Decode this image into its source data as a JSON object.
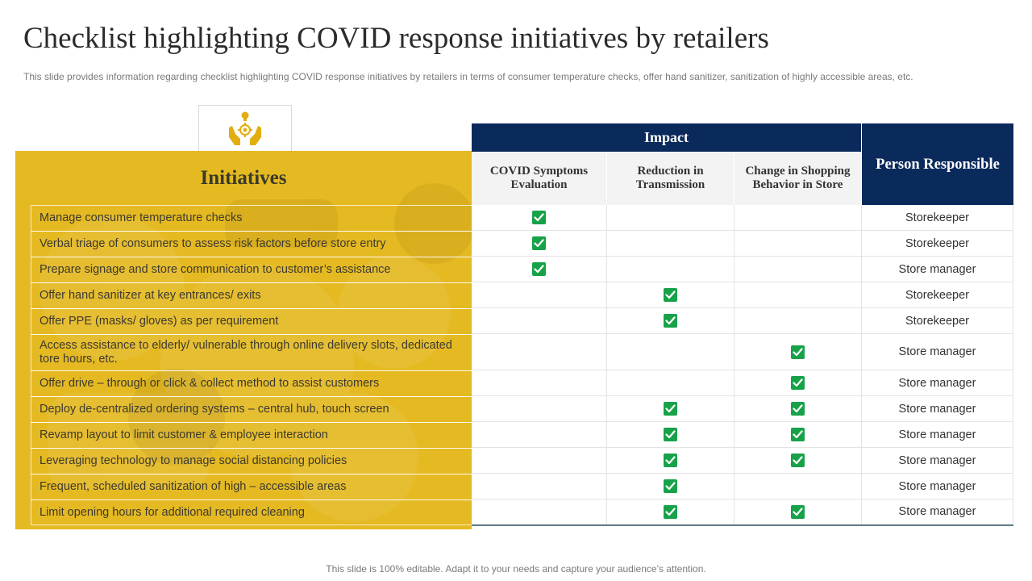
{
  "title": "Checklist highlighting COVID response initiatives by retailers",
  "subtitle": "This slide provides information regarding checklist highlighting COVID response initiatives by retailers in terms of consumer temperature checks, offer hand sanitizer, sanitization of highly accessible areas, etc.",
  "header": {
    "initiatives": "Initiatives",
    "impact": "Impact",
    "person_responsible": "Person Responsible",
    "columns": [
      "COVID Symptoms Evaluation",
      "Reduction in Transmission",
      "Change in Shopping Behavior in Store"
    ]
  },
  "rows": [
    {
      "initiative": "Manage consumer temperature checks",
      "checks": [
        true,
        false,
        false
      ],
      "person": "Storekeeper"
    },
    {
      "initiative": "Verbal triage of consumers to assess risk factors before store entry",
      "checks": [
        true,
        false,
        false
      ],
      "person": "Storekeeper"
    },
    {
      "initiative": "Prepare signage and store communication to customer’s assistance",
      "checks": [
        true,
        false,
        false
      ],
      "person": "Store manager"
    },
    {
      "initiative": "Offer hand sanitizer at key entrances/ exits",
      "checks": [
        false,
        true,
        false
      ],
      "person": "Storekeeper"
    },
    {
      "initiative": "Offer PPE (masks/ gloves) as per requirement",
      "checks": [
        false,
        true,
        false
      ],
      "person": "Storekeeper"
    },
    {
      "initiative": "Access assistance to elderly/ vulnerable through online delivery slots, dedicated tore hours, etc.",
      "checks": [
        false,
        false,
        true
      ],
      "person": "Store manager"
    },
    {
      "initiative": "Offer drive – through or click & collect method to assist customers",
      "checks": [
        false,
        false,
        true
      ],
      "person": "Store manager"
    },
    {
      "initiative": "Deploy de-centralized ordering systems – central hub, touch screen",
      "checks": [
        false,
        true,
        true
      ],
      "person": "Store manager"
    },
    {
      "initiative": "Revamp layout to limit customer & employee interaction",
      "checks": [
        false,
        true,
        true
      ],
      "person": "Store manager"
    },
    {
      "initiative": "Leveraging technology to manage social distancing policies",
      "checks": [
        false,
        true,
        true
      ],
      "person": "Store manager"
    },
    {
      "initiative": "Frequent, scheduled sanitization of high – accessible areas",
      "checks": [
        false,
        true,
        false
      ],
      "person": "Store manager"
    },
    {
      "initiative": "Limit opening hours for additional required cleaning",
      "checks": [
        false,
        true,
        true
      ],
      "person": "Store manager"
    }
  ],
  "footer": "This slide is 100% editable. Adapt it to your needs and capture your audience’s attention.",
  "colors": {
    "accent_yellow": "#e5b921",
    "navy": "#0b2a5c",
    "check_green": "#17a24a"
  }
}
